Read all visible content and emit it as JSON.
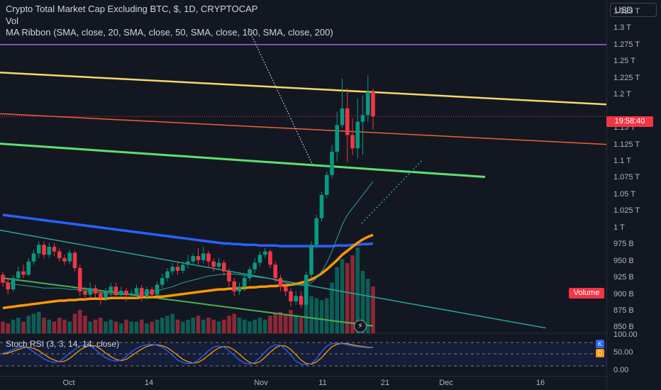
{
  "legend": {
    "title": "Crypto Total Market Cap Excluding BTC, $, 1D, CRYPTOCAP",
    "vol": "Vol",
    "ma_ribbon": "MA Ribbon (SMA, close, 20, SMA, close, 50, SMA, close, 100, SMA, close, 200)",
    "stoch": "Stoch RSI (3, 3, 14, 14, close)"
  },
  "price_axis": {
    "currency": "USD",
    "ticks": [
      "1.325 T",
      "1.3 T",
      "1.275 T",
      "1.25 T",
      "1.225 T",
      "1.2 T",
      "1.15 T",
      "1.125 T",
      "1.1 T",
      "1.075 T",
      "1.05 T",
      "1.025 T",
      "1 T",
      "975 B",
      "950 B",
      "925 B",
      "900 B",
      "875 B",
      "850 B"
    ],
    "tick_values": [
      1325,
      1300,
      1275,
      1250,
      1225,
      1200,
      1150,
      1125,
      1100,
      1075,
      1050,
      1025,
      1000,
      975,
      950,
      925,
      900,
      875,
      850
    ],
    "countdown": "19:58:40",
    "volume_label": "Volume",
    "stoch_ticks": [
      "100.00",
      "50.00",
      "0.00"
    ],
    "k_label": "K",
    "d_label": "D"
  },
  "time_axis": {
    "labels": [
      "Oct",
      "14",
      "Nov",
      "11",
      "21",
      "Dec",
      "16"
    ]
  },
  "colors": {
    "background": "#131722",
    "up": "#089981",
    "down": "#f23645",
    "purple_line": "#9c6ade",
    "yellow_line": "#f5d76e",
    "orange_line": "#f0603a",
    "green_line": "#5ee070",
    "blue_ma": "#2962ff",
    "orange_ma": "#ff9800",
    "teal_trend": "#26a69a",
    "stoch_k": "#2962ff",
    "stoch_d": "#ff9800"
  },
  "icons": {
    "flash": "lightning-icon"
  },
  "chart_data": {
    "type": "candlestick",
    "y_unit": "B USD",
    "ylim": [
      842,
      1343
    ],
    "candles": [
      [
        930,
        918,
        934,
        912
      ],
      [
        918,
        908,
        925,
        900
      ],
      [
        908,
        925,
        930,
        905
      ],
      [
        925,
        935,
        942,
        920
      ],
      [
        935,
        930,
        945,
        925
      ],
      [
        930,
        950,
        955,
        928
      ],
      [
        950,
        962,
        968,
        945
      ],
      [
        962,
        975,
        980,
        955
      ],
      [
        975,
        960,
        980,
        955
      ],
      [
        960,
        972,
        978,
        955
      ],
      [
        972,
        965,
        978,
        958
      ],
      [
        965,
        955,
        970,
        950
      ],
      [
        955,
        950,
        960,
        945
      ],
      [
        950,
        963,
        968,
        946
      ],
      [
        963,
        940,
        966,
        935
      ],
      [
        940,
        905,
        945,
        898
      ],
      [
        905,
        900,
        912,
        890
      ],
      [
        900,
        910,
        918,
        895
      ],
      [
        910,
        902,
        915,
        896
      ],
      [
        902,
        895,
        908,
        885
      ],
      [
        895,
        905,
        910,
        890
      ],
      [
        905,
        912,
        918,
        898
      ],
      [
        912,
        900,
        918,
        895
      ],
      [
        900,
        906,
        912,
        896
      ],
      [
        906,
        900,
        910,
        890
      ],
      [
        900,
        902,
        908,
        895
      ],
      [
        902,
        910,
        915,
        895
      ],
      [
        910,
        897,
        915,
        890
      ],
      [
        897,
        908,
        912,
        892
      ],
      [
        908,
        900,
        912,
        895
      ],
      [
        900,
        915,
        920,
        898
      ],
      [
        915,
        925,
        932,
        910
      ],
      [
        925,
        935,
        940,
        920
      ],
      [
        935,
        942,
        948,
        930
      ],
      [
        942,
        936,
        948,
        930
      ],
      [
        936,
        945,
        950,
        932
      ],
      [
        945,
        950,
        960,
        940
      ],
      [
        950,
        958,
        962,
        946
      ],
      [
        958,
        952,
        970,
        945
      ],
      [
        952,
        962,
        972,
        948
      ],
      [
        962,
        950,
        966,
        940
      ],
      [
        950,
        942,
        955,
        935
      ],
      [
        942,
        948,
        955,
        938
      ],
      [
        948,
        935,
        952,
        928
      ],
      [
        935,
        920,
        940,
        912
      ],
      [
        920,
        905,
        925,
        898
      ],
      [
        905,
        912,
        918,
        900
      ],
      [
        912,
        925,
        930,
        905
      ],
      [
        925,
        938,
        942,
        920
      ],
      [
        938,
        948,
        955,
        932
      ],
      [
        948,
        960,
        965,
        942
      ],
      [
        960,
        965,
        970,
        955
      ],
      [
        965,
        945,
        968,
        940
      ],
      [
        945,
        925,
        950,
        918
      ],
      [
        925,
        912,
        930,
        905
      ],
      [
        912,
        905,
        918,
        898
      ],
      [
        905,
        890,
        910,
        882
      ],
      [
        890,
        898,
        905,
        885
      ],
      [
        898,
        885,
        905,
        880
      ],
      [
        885,
        930,
        935,
        882
      ],
      [
        930,
        975,
        980,
        925
      ],
      [
        975,
        1015,
        1020,
        970
      ],
      [
        1015,
        1050,
        1055,
        1010
      ],
      [
        1050,
        1080,
        1085,
        1045
      ],
      [
        1080,
        1115,
        1125,
        1075
      ],
      [
        1115,
        1155,
        1175,
        1100
      ],
      [
        1155,
        1180,
        1225,
        1150
      ],
      [
        1180,
        1140,
        1210,
        1100
      ],
      [
        1140,
        1120,
        1165,
        1110
      ],
      [
        1120,
        1160,
        1195,
        1105
      ],
      [
        1160,
        1170,
        1200,
        1110
      ],
      [
        1170,
        1205,
        1230,
        1160
      ],
      [
        1205,
        1168,
        1210,
        1148
      ]
    ],
    "volumes": [
      0.3,
      0.25,
      0.35,
      0.4,
      0.3,
      0.45,
      0.5,
      0.55,
      0.4,
      0.35,
      0.3,
      0.4,
      0.35,
      0.3,
      0.5,
      0.6,
      0.45,
      0.3,
      0.35,
      0.4,
      0.3,
      0.35,
      0.3,
      0.25,
      0.35,
      0.3,
      0.3,
      0.35,
      0.25,
      0.3,
      0.35,
      0.4,
      0.45,
      0.5,
      0.35,
      0.3,
      0.35,
      0.4,
      0.45,
      0.35,
      0.4,
      0.35,
      0.3,
      0.35,
      0.45,
      0.5,
      0.4,
      0.35,
      0.3,
      0.35,
      0.4,
      0.35,
      0.45,
      0.5,
      0.55,
      0.5,
      0.6,
      0.45,
      0.4,
      0.8,
      0.95,
      0.9,
      0.85,
      0.9,
      1.3,
      1.7,
      1.9,
      1.8,
      2.0,
      2.2,
      1.6,
      1.4,
      1.2
    ],
    "moving_averages": {
      "ma20": [
        920,
        918,
        916,
        915,
        914,
        913,
        912,
        911,
        910,
        910,
        910,
        910,
        909,
        908,
        908,
        907,
        906,
        905,
        904,
        903,
        902,
        901,
        900,
        900,
        900,
        900,
        901,
        902,
        903,
        904,
        906,
        908,
        910,
        912,
        915,
        918,
        920,
        922,
        924,
        926,
        928,
        929,
        930,
        931,
        931,
        931,
        930,
        929,
        928,
        927,
        926,
        925,
        924,
        922,
        920,
        918,
        916,
        915,
        914,
        914,
        918,
        925,
        935,
        948,
        965,
        985,
        1005,
        1020,
        1030,
        1040,
        1050,
        1060,
        1070
      ],
      "ma50": [
        880,
        881,
        882,
        883,
        884,
        885,
        886,
        887,
        888,
        889,
        890,
        891,
        891,
        892,
        892,
        893,
        893,
        894,
        894,
        894,
        894,
        895,
        895,
        895,
        895,
        895,
        895,
        896,
        896,
        896,
        897,
        897,
        898,
        899,
        900,
        901,
        902,
        903,
        904,
        905,
        906,
        907,
        908,
        908,
        909,
        909,
        910,
        910,
        911,
        911,
        912,
        912,
        913,
        913,
        914,
        914,
        915,
        916,
        918,
        920,
        923,
        927,
        932,
        938,
        945,
        952,
        960,
        966,
        972,
        978,
        983,
        987,
        990
      ],
      "ma100": [
        1020,
        1019,
        1018,
        1017,
        1016,
        1015,
        1014,
        1013,
        1012,
        1011,
        1010,
        1009,
        1008,
        1007,
        1006,
        1005,
        1004,
        1003,
        1002,
        1001,
        1000,
        999,
        998,
        997,
        996,
        995,
        994,
        993,
        992,
        991,
        990,
        989,
        988,
        987,
        986,
        985,
        984,
        983,
        982,
        981,
        980,
        979,
        978,
        977,
        977,
        976,
        976,
        975,
        975,
        975,
        974,
        974,
        974,
        974,
        973,
        973,
        973,
        973,
        973,
        973,
        973,
        973,
        973,
        973,
        973,
        974,
        974,
        974,
        975,
        975,
        976,
        976,
        977
      ],
      "ma200_fan": [
        925,
        924,
        923,
        922,
        921,
        920,
        919,
        918,
        917,
        916,
        915,
        914,
        913,
        912,
        911,
        910,
        909,
        908,
        907,
        906,
        905,
        904,
        903,
        902,
        901,
        900,
        899,
        898,
        897,
        896,
        895,
        894,
        893,
        892,
        891,
        890,
        889,
        888,
        887,
        886,
        885,
        884,
        883,
        882,
        881,
        880,
        879,
        878,
        877,
        876,
        875,
        874,
        873,
        872,
        871,
        870,
        869,
        868,
        867,
        866,
        865,
        864,
        863,
        862,
        861,
        860,
        859,
        858,
        857,
        856,
        855,
        854,
        853
      ]
    },
    "horizontal_lines": [
      {
        "name": "purple",
        "value": 1276
      }
    ],
    "trend_lines": [
      {
        "name": "yellow",
        "from": [
          0,
          1234
        ],
        "to": [
          100,
          1186
        ]
      },
      {
        "name": "orange",
        "from": [
          0,
          1172
        ],
        "to": [
          100,
          1126
        ]
      },
      {
        "name": "green",
        "from": [
          0,
          1127
        ],
        "to": [
          80,
          1077
        ]
      },
      {
        "name": "teal",
        "from": [
          0,
          997
        ],
        "to": [
          90,
          850
        ]
      }
    ],
    "stoch_rsi": {
      "k": [
        55,
        60,
        70,
        80,
        85,
        75,
        60,
        45,
        30,
        20,
        15,
        20,
        35,
        55,
        70,
        85,
        90,
        85,
        70,
        50,
        35,
        25,
        20,
        25,
        40,
        60,
        75,
        85,
        90,
        92,
        88,
        80,
        65,
        45,
        25,
        15,
        10,
        12,
        25,
        45,
        65,
        80,
        85,
        80,
        65,
        45,
        25,
        12,
        8,
        15,
        35,
        60,
        80,
        90,
        88,
        70,
        45,
        20,
        8,
        5,
        10,
        30,
        60,
        85,
        95,
        98,
        95,
        90,
        85,
        82,
        80,
        78,
        78
      ],
      "d": [
        50,
        55,
        62,
        70,
        78,
        80,
        75,
        65,
        50,
        35,
        25,
        18,
        20,
        32,
        50,
        68,
        80,
        87,
        85,
        72,
        55,
        40,
        28,
        22,
        28,
        42,
        58,
        72,
        83,
        89,
        90,
        86,
        78,
        62,
        45,
        28,
        18,
        12,
        15,
        28,
        45,
        63,
        77,
        83,
        80,
        68,
        50,
        30,
        15,
        10,
        18,
        37,
        58,
        77,
        87,
        85,
        70,
        48,
        25,
        10,
        8,
        17,
        35,
        60,
        82,
        93,
        96,
        95,
        90,
        86,
        83,
        80,
        79
      ]
    }
  }
}
